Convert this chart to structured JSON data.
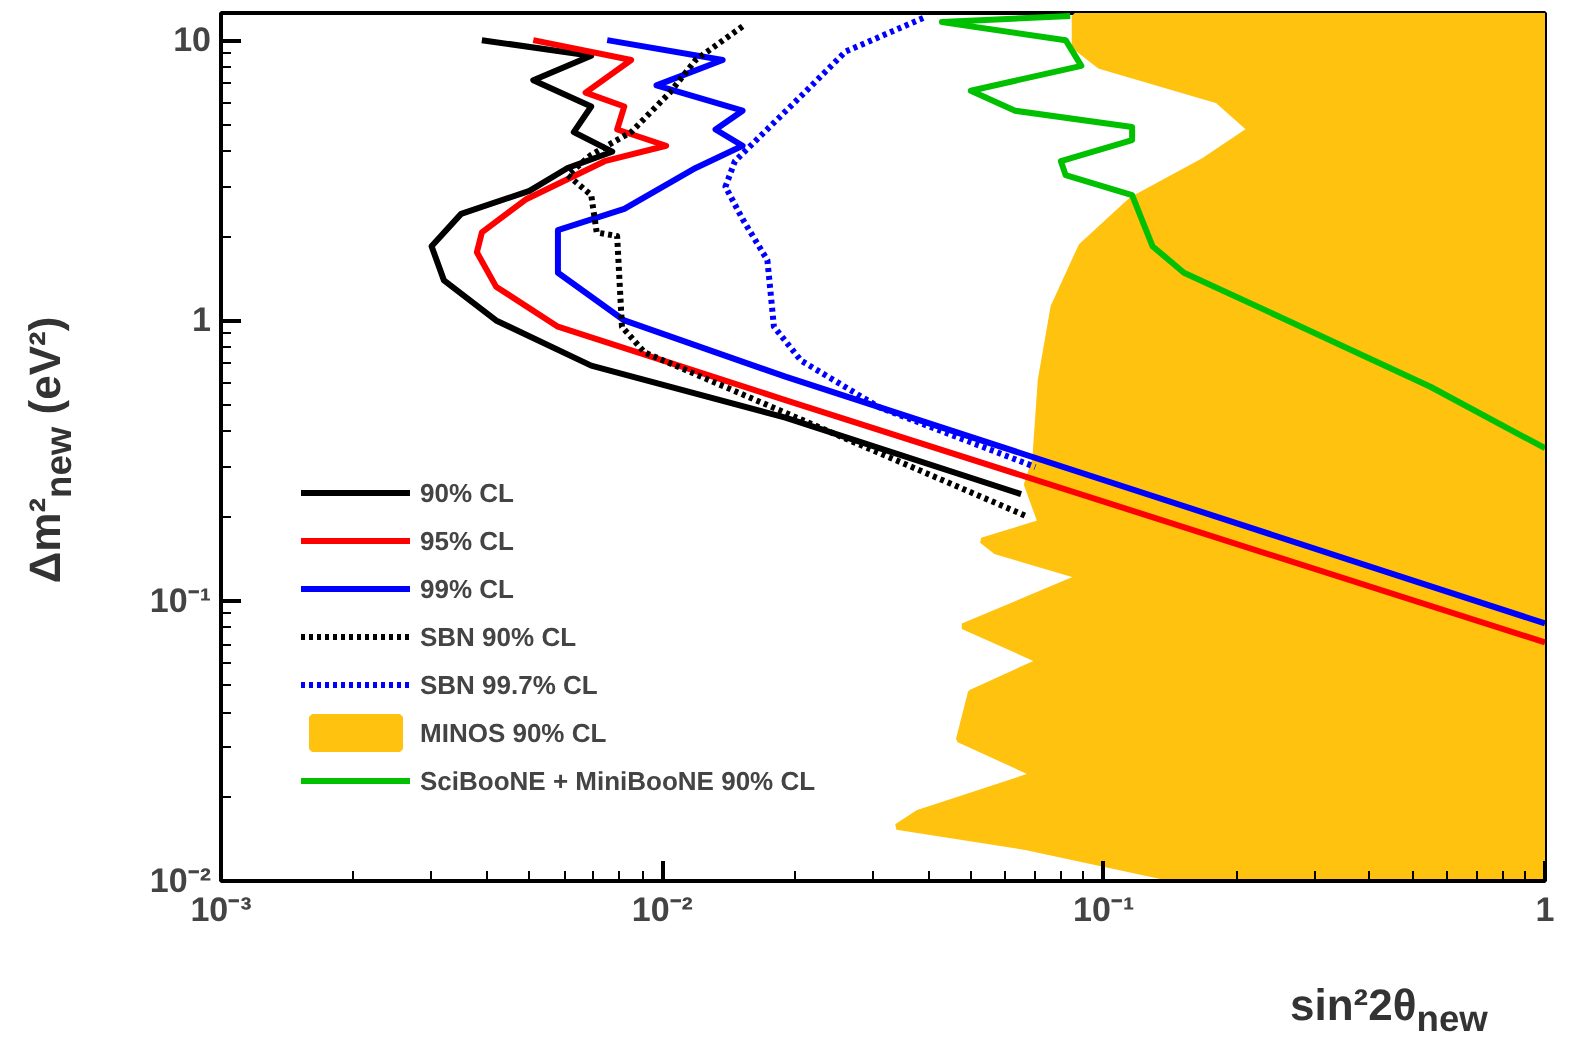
{
  "chart_data": {
    "type": "line",
    "xlabel": "sin²2θ$_{new}$",
    "ylabel": "Δm²$_{new}$ (eV²)",
    "log": "xy",
    "grid": false,
    "legend": "bottom left",
    "xlim": [
      0.001,
      1
    ],
    "ylim": [
      0.01,
      12.5
    ],
    "xticks": [
      {
        "value": 0.001,
        "label": "10⁻³"
      },
      {
        "value": 0.01,
        "label": "10⁻²"
      },
      {
        "value": 0.1,
        "label": "10⁻¹"
      },
      {
        "value": 1,
        "label": "1"
      }
    ],
    "yticks": [
      {
        "value": 0.01,
        "label": "10⁻²"
      },
      {
        "value": 0.1,
        "label": "10⁻¹"
      },
      {
        "value": 1,
        "label": "1"
      },
      {
        "value": 10,
        "label": "10"
      }
    ],
    "series": [
      {
        "name": "MINOS 90% CL",
        "type": "area",
        "color": "#ffc20e",
        "x": [
          0.086,
          0.086,
          0.098,
          0.181,
          0.215,
          0.168,
          0.116,
          0.089,
          0.077,
          0.072,
          0.07,
          0.067,
          0.072,
          0.053,
          0.057,
          0.089,
          0.048,
          0.072,
          0.05,
          0.047,
          0.07,
          0.038,
          0.034,
          0.067,
          0.152,
          1,
          1
        ],
        "values": [
          12.2,
          9.5,
          8.1,
          6.1,
          4.8,
          3.7,
          2.7,
          1.84,
          1.12,
          0.61,
          0.32,
          0.26,
          0.19,
          0.164,
          0.15,
          0.122,
          0.081,
          0.061,
          0.047,
          0.032,
          0.024,
          0.0175,
          0.0156,
          0.0132,
          0.01,
          0.01,
          12.2
        ]
      },
      {
        "name": "90% CL",
        "color": "#000000",
        "line_style": "solid",
        "x": [
          0.0039,
          0.0069,
          0.0051,
          0.0069,
          0.0063,
          0.0077,
          0.0061,
          0.005,
          0.0035,
          0.003,
          0.0032,
          0.0042,
          0.0069,
          0.019,
          0.065
        ],
        "values": [
          10,
          8.8,
          7.2,
          5.8,
          4.7,
          4.0,
          3.5,
          2.9,
          2.4,
          1.84,
          1.39,
          1.0,
          0.69,
          0.45,
          0.24
        ]
      },
      {
        "name": "95% CL",
        "color": "#ff0000",
        "line_style": "solid",
        "x": [
          0.0051,
          0.0085,
          0.0067,
          0.0082,
          0.0079,
          0.0102,
          0.0074,
          0.0049,
          0.0039,
          0.0038,
          0.0042,
          0.0058,
          0.019,
          1.0
        ],
        "values": [
          10,
          8.5,
          6.5,
          5.8,
          4.8,
          4.2,
          3.7,
          2.7,
          2.06,
          1.75,
          1.32,
          0.95,
          0.52,
          0.071
        ]
      },
      {
        "name": "99% CL",
        "color": "#0000ff",
        "line_style": "solid",
        "x": [
          0.0075,
          0.0137,
          0.0097,
          0.0152,
          0.0132,
          0.0152,
          0.0119,
          0.0082,
          0.0058,
          0.0058,
          0.0082,
          0.019,
          1.0
        ],
        "values": [
          10,
          8.5,
          6.9,
          5.6,
          4.8,
          4.2,
          3.5,
          2.5,
          2.1,
          1.48,
          1.0,
          0.63,
          0.083
        ]
      },
      {
        "name": "SBN 90% CL",
        "color": "#000000",
        "line_style": "dotted",
        "x": [
          0.0152,
          0.0119,
          0.0104,
          0.0085,
          0.0069,
          0.0061,
          0.0069,
          0.0071,
          0.0079,
          0.0081,
          0.0091,
          0.067
        ],
        "values": [
          11.2,
          8.5,
          6.5,
          4.7,
          3.9,
          3.3,
          2.8,
          2.06,
          2.0,
          0.95,
          0.77,
          0.2
        ]
      },
      {
        "name": "SBN 99.7% CL",
        "color": "#0000ff",
        "line_style": "dotted",
        "x": [
          0.039,
          0.026,
          0.021,
          0.0146,
          0.0139,
          0.0152,
          0.0173,
          0.0179,
          0.0206,
          0.031,
          0.07
        ],
        "values": [
          12,
          9.1,
          6.5,
          3.7,
          3.0,
          2.3,
          1.64,
          0.95,
          0.72,
          0.49,
          0.3
        ]
      },
      {
        "name": "SciBooNE + MiniBooNE 90% CL",
        "color": "#00c000",
        "line_style": "solid",
        "x": [
          0.084,
          0.043,
          0.082,
          0.089,
          0.05,
          0.063,
          0.116,
          0.116,
          0.08,
          0.082,
          0.116,
          0.129,
          0.152,
          0.28,
          0.55,
          1.0
        ],
        "values": [
          12.2,
          11.6,
          10,
          8.1,
          6.6,
          5.6,
          4.9,
          4.4,
          3.7,
          3.3,
          2.8,
          1.84,
          1.48,
          0.95,
          0.58,
          0.35
        ]
      }
    ]
  }
}
